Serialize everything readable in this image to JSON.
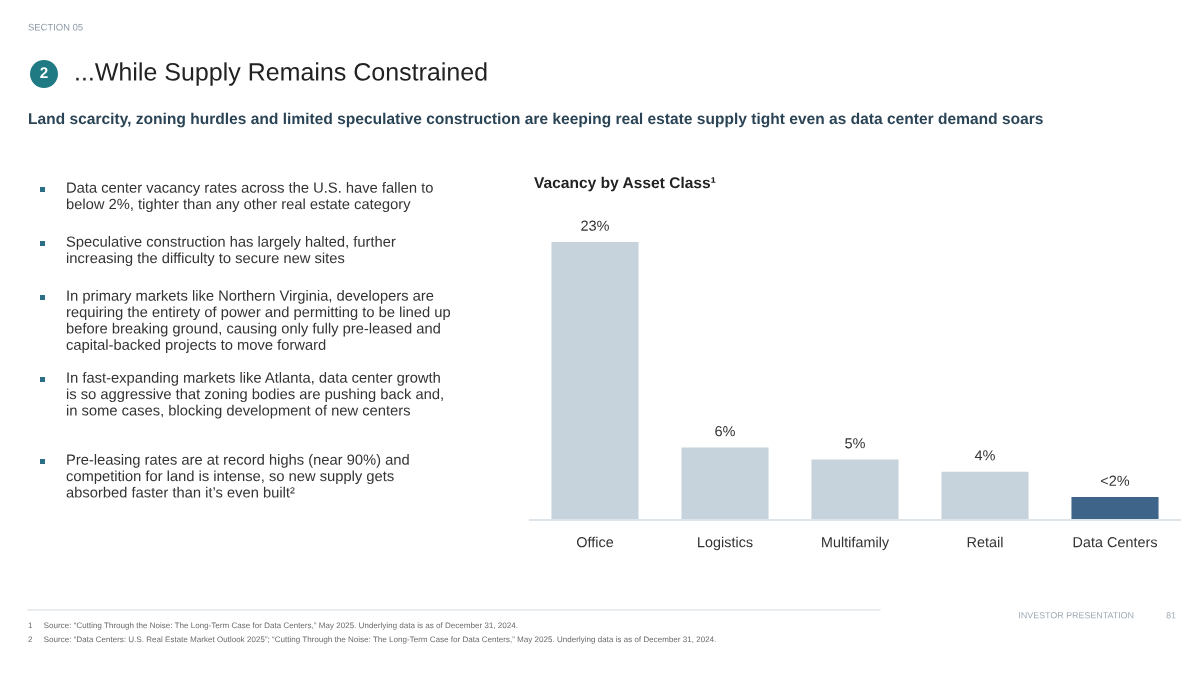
{
  "chart_data": {
    "type": "bar",
    "title": "Vacancy by Asset Class¹",
    "categories": [
      "Office",
      "Logistics",
      "Multifamily",
      "Retail",
      "Data Centers"
    ],
    "values": [
      23,
      6,
      5,
      4,
      1.9
    ],
    "value_labels": [
      "23%",
      "6%",
      "5%",
      "4%",
      "<2%"
    ],
    "colors": [
      "#c6d3dc",
      "#c6d3dc",
      "#c6d3dc",
      "#c6d3dc",
      "#3e6489"
    ],
    "ylim": [
      0,
      23
    ],
    "tick_labels": "x",
    "grid": false,
    "annotations": [
      "SECTION 05",
      "2",
      "...While Supply Remains Constrained",
      "Land scarcity, zoning hurdles and limited speculative construction are keeping real estate supply tight even as data center demand soars",
      "Data center vacancy rates across the U.S. have fallen to\nbelow 2%, tighter than any other real estate category",
      "Speculative construction has largely halted, further\nincreasing the difficulty to secure new sites",
      "In primary markets like Northern Virginia, developers are\nrequiring the entirety of power and permitting to be lined up\nbefore breaking ground, causing only fully pre-leased and\ncapital-backed projects to move forward",
      "In fast-expanding markets like Atlanta, data center growth\nis so aggressive that zoning bodies are pushing back and,\nin some cases, blocking development of new centers",
      "Pre-leasing rates are at record highs (near 90%) and\ncompetition for land is intense, so new supply gets\nabsorbed faster than it’s even built²",
      "1     Source: “Cutting Through the Noise: The Long-Term Case for Data Centers,” May 2025. Underlying data is as of December 31, 2024.",
      "2     Source: “Data Centers: U.S. Real Estate Market Outlook 2025”; “Cutting Through the Noise: The Long-Term Case for Data Centers,” May 2025. Underlying data is as of December 31, 2024.",
      "INVESTOR PRESENTATION",
      "81"
    ]
  }
}
